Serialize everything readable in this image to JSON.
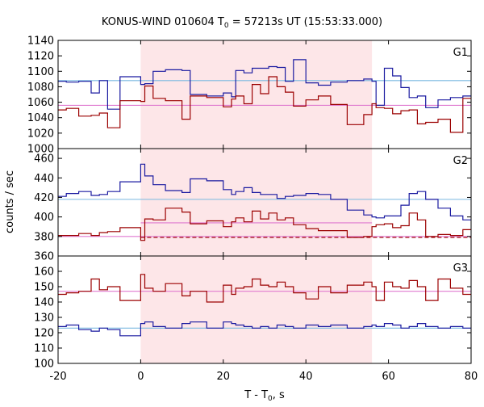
{
  "chart_data": {
    "type": "line",
    "title_main": "KONUS-WIND 010604 T",
    "title_sub": "0",
    "title_rest": " = 57213s UT (15:53:33.000)",
    "xlabel_main": "T - T",
    "xlabel_sub": "0",
    "xlabel_rest": ", s",
    "ylabel": "counts / sec",
    "xlim": [
      -20,
      80
    ],
    "xticks": [
      -20,
      0,
      20,
      40,
      60,
      80
    ],
    "highlight_interval": [
      0,
      56
    ],
    "colors": {
      "blue": "#1a1aa0",
      "red": "#9b0000",
      "cyan": "#7ab8e0",
      "pink": "#e07ad0",
      "shade": "#fde6e8"
    },
    "panels": [
      {
        "name": "G1",
        "ylim": [
          1000,
          1140
        ],
        "yticks": [
          1000,
          1020,
          1040,
          1060,
          1080,
          1100,
          1120,
          1140
        ],
        "bin_edges": [
          -20,
          -18,
          -15,
          -12,
          -10,
          -8,
          -5,
          0,
          1,
          3,
          6,
          10,
          12,
          16,
          20,
          22,
          23,
          25,
          27,
          29,
          31,
          33,
          35,
          37,
          40,
          43,
          46,
          50,
          54,
          56,
          57,
          59,
          61,
          63,
          65,
          67,
          69,
          72,
          75,
          78,
          80
        ],
        "blue_values": [
          1087,
          1086,
          1087,
          1072,
          1088,
          1051,
          1093,
          1083,
          1084,
          1100,
          1102,
          1101,
          1070,
          1068,
          1072,
          1067,
          1101,
          1098,
          1104,
          1104,
          1106,
          1105,
          1087,
          1115,
          1085,
          1082,
          1086,
          1088,
          1090,
          1087,
          1056,
          1104,
          1094,
          1079,
          1066,
          1068,
          1053,
          1063,
          1066,
          1068
        ],
        "red_values": [
          1050,
          1052,
          1042,
          1043,
          1046,
          1027,
          1062,
          1061,
          1081,
          1065,
          1062,
          1038,
          1068,
          1066,
          1054,
          1064,
          1068,
          1058,
          1083,
          1071,
          1093,
          1080,
          1073,
          1055,
          1063,
          1068,
          1057,
          1031,
          1044,
          1058,
          1053,
          1052,
          1045,
          1049,
          1050,
          1032,
          1034,
          1038,
          1021,
          1065
        ],
        "blue_level": 1088,
        "red_level": 1056
      },
      {
        "name": "G2",
        "ylim": [
          360,
          470
        ],
        "yticks": [
          360,
          380,
          400,
          420,
          440,
          460
        ],
        "bin_edges": [
          -20,
          -18,
          -15,
          -12,
          -10,
          -8,
          -5,
          0,
          1,
          3,
          6,
          10,
          12,
          16,
          20,
          22,
          23,
          25,
          27,
          29,
          31,
          33,
          35,
          37,
          40,
          43,
          46,
          50,
          54,
          56,
          57,
          59,
          61,
          63,
          65,
          67,
          69,
          72,
          75,
          78,
          80
        ],
        "blue_values": [
          421,
          424,
          426,
          422,
          423,
          426,
          436,
          454,
          442,
          433,
          427,
          425,
          439,
          437,
          428,
          423,
          426,
          430,
          425,
          423,
          423,
          419,
          421,
          422,
          424,
          423,
          418,
          407,
          402,
          400,
          399,
          401,
          401,
          412,
          424,
          426,
          418,
          409,
          401,
          397
        ],
        "red_values": [
          381,
          381,
          383,
          381,
          384,
          385,
          389,
          376,
          398,
          397,
          409,
          405,
          393,
          396,
          390,
          395,
          399,
          395,
          406,
          398,
          404,
          397,
          399,
          392,
          388,
          386,
          386,
          379,
          380,
          390,
          392,
          393,
          389,
          391,
          404,
          397,
          380,
          382,
          381,
          387
        ],
        "blue_level": 418,
        "red_level": 380,
        "pink_level": 394,
        "red_dashed_level": 379
      },
      {
        "name": "G3",
        "ylim": [
          100,
          170
        ],
        "yticks": [
          100,
          110,
          120,
          130,
          140,
          150,
          160
        ],
        "bin_edges": [
          -20,
          -18,
          -15,
          -12,
          -10,
          -8,
          -5,
          0,
          1,
          3,
          6,
          10,
          12,
          16,
          20,
          22,
          23,
          25,
          27,
          29,
          31,
          33,
          35,
          37,
          40,
          43,
          46,
          50,
          54,
          56,
          57,
          59,
          61,
          63,
          65,
          67,
          69,
          72,
          75,
          78,
          80
        ],
        "blue_values": [
          124,
          125,
          122,
          121,
          123,
          122,
          118,
          126,
          127,
          124,
          123,
          126,
          127,
          123,
          127,
          126,
          125,
          124,
          123,
          124,
          123,
          125,
          124,
          123,
          125,
          124,
          125,
          123,
          124,
          125,
          124,
          126,
          125,
          123,
          124,
          126,
          124,
          123,
          124,
          123
        ],
        "red_values": [
          145,
          146,
          147,
          155,
          148,
          150,
          141,
          158,
          149,
          147,
          152,
          144,
          147,
          140,
          151,
          145,
          149,
          150,
          155,
          151,
          150,
          153,
          150,
          146,
          142,
          150,
          146,
          151,
          153,
          150,
          141,
          153,
          150,
          149,
          154,
          150,
          141,
          155,
          149,
          145
        ],
        "blue_level": 123,
        "red_level": 147
      }
    ]
  }
}
